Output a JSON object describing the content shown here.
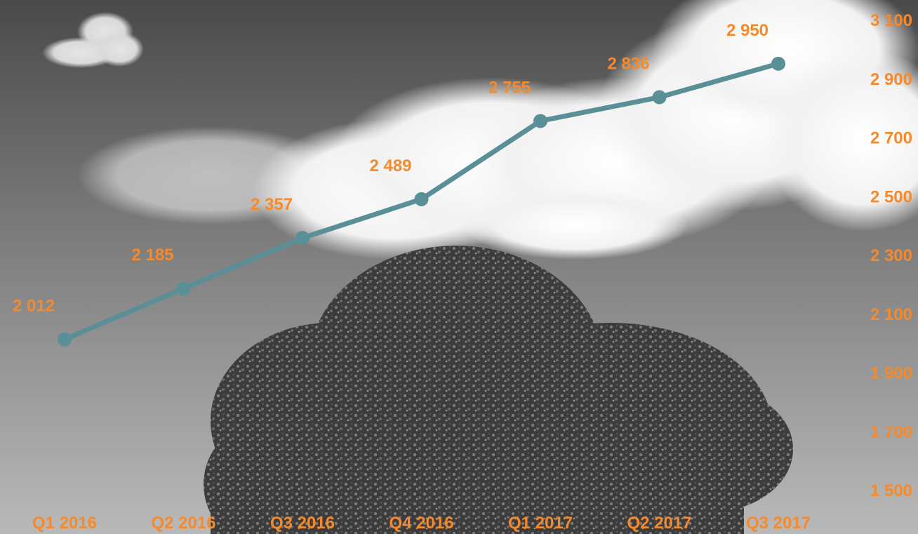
{
  "chart_data": {
    "type": "line",
    "categories": [
      "Q1 2016",
      "Q2 2016",
      "Q3 2016",
      "Q4 2016",
      "Q1 2017",
      "Q2 2017",
      "Q3 2017"
    ],
    "series": [
      {
        "values": [
          2012,
          2185,
          2357,
          2489,
          2755,
          2836,
          2950
        ],
        "data_labels": [
          "2 012",
          "2 185",
          "2 357",
          "2 489",
          "2 755",
          "2 836",
          "2 950"
        ]
      }
    ],
    "y_axis": {
      "position": "right",
      "ticks": [
        3100,
        2900,
        2700,
        2500,
        2300,
        2100,
        1900,
        1700,
        1500
      ],
      "tick_labels": [
        "3 100",
        "2 900",
        "2 700",
        "2 500",
        "2 300",
        "2 100",
        "1 900",
        "1 700",
        "1 500"
      ],
      "ylim": [
        1500,
        3100
      ]
    },
    "grid": false,
    "legend": "none",
    "colors": {
      "line": "#5a8f98",
      "labels": "#f58a2c"
    },
    "background": "grayscale photo of cloudy sky above a tree"
  }
}
